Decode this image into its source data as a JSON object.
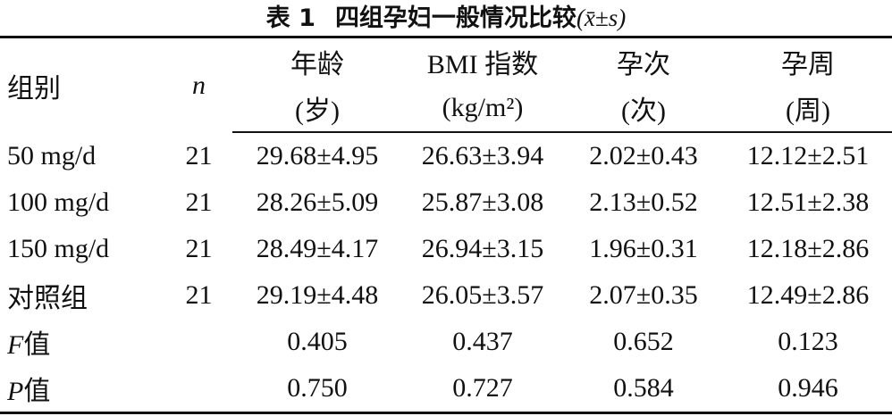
{
  "title": {
    "label": "表 1",
    "text": "四组孕妇一般情况比较",
    "formula": "(x̄±s)"
  },
  "table": {
    "columns": [
      {
        "label": "组别"
      },
      {
        "label": "n"
      },
      {
        "label": "年龄",
        "unit": "(岁)"
      },
      {
        "label": "BMI 指数",
        "unit": "(kg/m²)"
      },
      {
        "label": "孕次",
        "unit": "(次)"
      },
      {
        "label": "孕周",
        "unit": "(周)"
      }
    ],
    "rows": [
      [
        "50 mg/d",
        "21",
        "29.68±4.95",
        "26.63±3.94",
        "2.02±0.43",
        "12.12±2.51"
      ],
      [
        "100 mg/d",
        "21",
        "28.26±5.09",
        "25.87±3.08",
        "2.13±0.52",
        "12.51±2.38"
      ],
      [
        "150 mg/d",
        "21",
        "28.49±4.17",
        "26.94±3.15",
        "1.96±0.31",
        "12.18±2.86"
      ],
      [
        "对照组",
        "21",
        "29.19±4.48",
        "26.05±3.57",
        "2.07±0.35",
        "12.49±2.86"
      ]
    ],
    "stats": [
      {
        "symbol": "F",
        "suffix": "值",
        "values": [
          "0.405",
          "0.437",
          "0.652",
          "0.123"
        ]
      },
      {
        "symbol": "P",
        "suffix": "值",
        "values": [
          "0.750",
          "0.727",
          "0.584",
          "0.946"
        ]
      }
    ]
  }
}
